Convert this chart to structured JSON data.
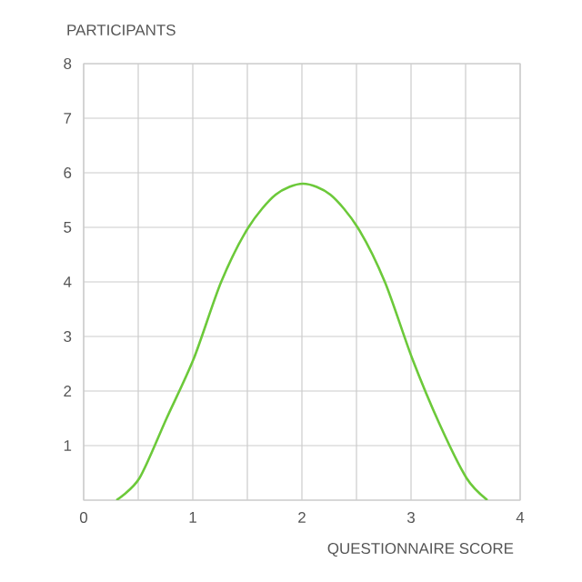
{
  "chart_data": {
    "type": "line",
    "xlabel": "QUESTIONNAIRE SCORE",
    "ylabel": "PARTICIPANTS",
    "xlim": [
      0,
      4
    ],
    "ylim": [
      0,
      8
    ],
    "xticks": [
      0,
      {
        "value": 0.5,
        "label": null
      },
      1,
      {
        "value": 1.5,
        "label": null
      },
      2,
      {
        "value": 2.5,
        "label": null
      },
      3,
      {
        "value": 3.5,
        "label": null
      },
      4
    ],
    "yticks": [
      {
        "value": 0,
        "label": null
      },
      1,
      2,
      3,
      4,
      5,
      6,
      7,
      8
    ],
    "grid": true,
    "marker": "none",
    "line_style": "solid",
    "series": [
      {
        "color": "#6cc93a",
        "x": [
          0.3,
          0.51,
          0.76,
          1.01,
          1.26,
          1.51,
          1.76,
          2.01,
          2.26,
          2.51,
          2.76,
          3.01,
          3.26,
          3.51,
          3.7
        ],
        "values": [
          0,
          0.4,
          1.5,
          2.6,
          4.0,
          5.0,
          5.6,
          5.8,
          5.6,
          5.0,
          4.0,
          2.6,
          1.4,
          0.4,
          0
        ]
      }
    ]
  }
}
